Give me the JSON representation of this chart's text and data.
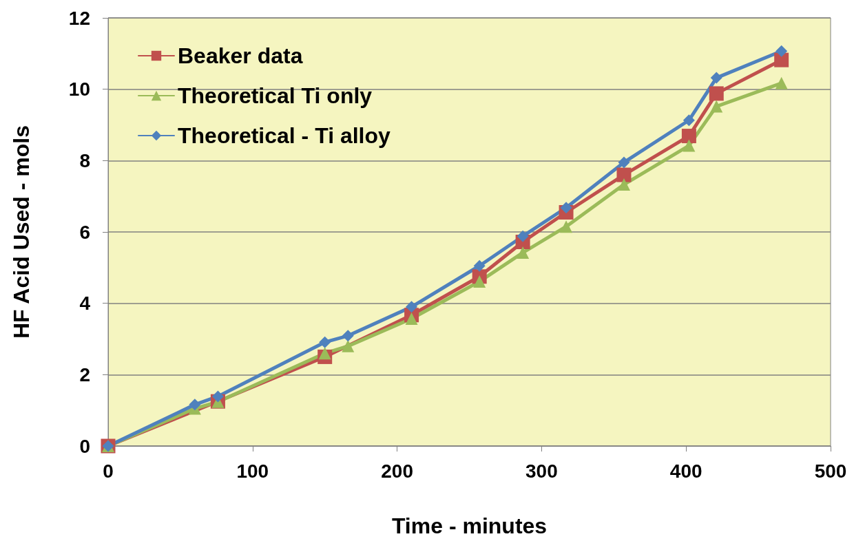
{
  "chart_data": {
    "type": "line",
    "xlabel": "Time - minutes",
    "ylabel": "HF Acid Used - mols",
    "xlim": [
      0,
      500
    ],
    "xticks": [
      0,
      100,
      200,
      300,
      400,
      500
    ],
    "ylim": [
      0,
      12
    ],
    "yticks": [
      0,
      2,
      4,
      6,
      8,
      10,
      12
    ],
    "grid": "y",
    "legend": "top left",
    "line_style": "solid",
    "series": [
      {
        "name": "Beaker data",
        "color": "#c0504d",
        "marker": "square",
        "x": [
          0,
          76,
          150,
          210,
          257,
          287,
          317,
          357,
          402,
          421,
          466
        ],
        "values": [
          0,
          1.25,
          2.5,
          3.67,
          4.75,
          5.72,
          6.55,
          7.6,
          8.69,
          9.88,
          10.82
        ]
      },
      {
        "name": "Theoretical Ti only",
        "color": "#9bbb59",
        "marker": "triangle",
        "x": [
          0,
          60,
          76,
          150,
          166,
          210,
          257,
          287,
          317,
          357,
          402,
          421,
          466
        ],
        "values": [
          0,
          1.05,
          1.24,
          2.6,
          2.8,
          3.57,
          4.61,
          5.42,
          6.15,
          7.33,
          8.42,
          9.52,
          10.17
        ]
      },
      {
        "name": "Theoretical - Ti alloy",
        "color": "#4f81bd",
        "marker": "diamond",
        "x": [
          0,
          60,
          76,
          150,
          166,
          210,
          257,
          287,
          317,
          357,
          402,
          421,
          466
        ],
        "values": [
          0,
          1.16,
          1.39,
          2.91,
          3.09,
          3.9,
          5.05,
          5.88,
          6.68,
          7.95,
          9.13,
          10.32,
          11.07
        ]
      }
    ]
  }
}
